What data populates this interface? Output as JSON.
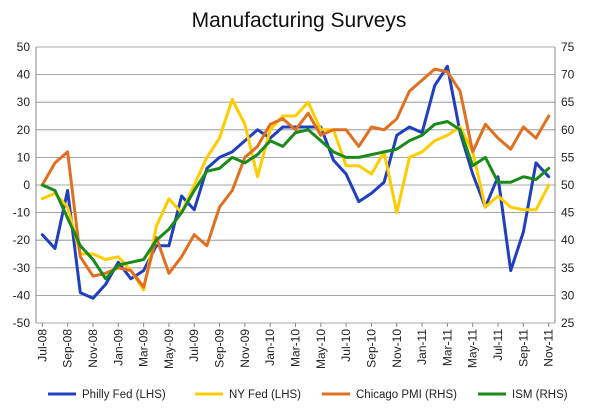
{
  "chart_data": {
    "type": "line",
    "title": "Manufacturing Surveys",
    "xlabel": "",
    "ylabel_left": "",
    "ylabel_right": "",
    "left_axis": {
      "ylim": [
        -50,
        50
      ],
      "ticks": [
        -50,
        -40,
        -30,
        -20,
        -10,
        0,
        10,
        20,
        30,
        40,
        50
      ]
    },
    "right_axis": {
      "ylim": [
        25,
        75
      ],
      "ticks": [
        25,
        30,
        35,
        40,
        45,
        50,
        55,
        60,
        65,
        70,
        75
      ]
    },
    "grid": true,
    "legend_position": "bottom",
    "categories": [
      "Jul-08",
      "Aug-08",
      "Sep-08",
      "Oct-08",
      "Nov-08",
      "Dec-08",
      "Jan-09",
      "Feb-09",
      "Mar-09",
      "Apr-09",
      "May-09",
      "Jun-09",
      "Jul-09",
      "Aug-09",
      "Sep-09",
      "Oct-09",
      "Nov-09",
      "Dec-09",
      "Jan-10",
      "Feb-10",
      "Mar-10",
      "Apr-10",
      "May-10",
      "Jun-10",
      "Jul-10",
      "Aug-10",
      "Sep-10",
      "Oct-10",
      "Nov-10",
      "Dec-10",
      "Jan-11",
      "Feb-11",
      "Mar-11",
      "Apr-11",
      "May-11",
      "Jun-11",
      "Jul-11",
      "Aug-11",
      "Sep-11",
      "Oct-11",
      "Nov-11"
    ],
    "tick_labels": [
      "Jul-08",
      "Sep-08",
      "Nov-08",
      "Jan-09",
      "Mar-09",
      "May-09",
      "Jul-09",
      "Sep-09",
      "Nov-09",
      "Jan-10",
      "Mar-10",
      "May-10",
      "Jul-10",
      "Sep-10",
      "Nov-10",
      "Jan-11",
      "Mar-11",
      "May-11",
      "Jul-11",
      "Sep-11",
      "Nov-11"
    ],
    "series": [
      {
        "name": "Philly Fed (LHS)",
        "axis": "left",
        "color": "#1f3fbf",
        "values": [
          -18,
          -23,
          -2,
          -39,
          -41,
          -36,
          -28,
          -34,
          -31,
          -22,
          -22,
          -4,
          -9,
          6,
          10,
          12,
          16,
          20,
          17,
          21,
          21,
          21,
          21,
          9,
          4,
          -6,
          -3,
          1,
          18,
          21,
          19,
          36,
          43,
          19,
          4,
          -8,
          3,
          -31,
          -17,
          8,
          3
        ]
      },
      {
        "name": "NY Fed (LHS)",
        "axis": "left",
        "color": "#ffcc00",
        "values": [
          -5,
          -3,
          -8,
          -25,
          -25,
          -27,
          -26,
          -31,
          -38,
          -15,
          -5,
          -10,
          0,
          10,
          17,
          31,
          22,
          3,
          20,
          25,
          25,
          30,
          20,
          20,
          7,
          7,
          4,
          12,
          -10,
          10,
          12,
          16,
          18,
          21,
          12,
          -8,
          -4,
          -8,
          -9,
          -9,
          0
        ]
      },
      {
        "name": "Chicago PMI  (RHS)",
        "axis": "right",
        "color": "#e07020",
        "values": [
          50,
          54,
          56,
          37,
          33.5,
          34,
          35,
          34.5,
          31.5,
          40.5,
          34,
          37,
          41,
          39,
          46,
          49,
          55,
          57,
          61,
          62,
          60,
          63,
          59,
          60,
          60,
          57,
          60.5,
          60,
          62,
          67,
          69,
          71,
          70.5,
          67,
          56,
          61,
          58.5,
          56.5,
          60.5,
          58.5,
          62.5
        ]
      },
      {
        "name": "ISM (RHS)",
        "axis": "right",
        "color": "#1a8a1a",
        "values": [
          50,
          49,
          44,
          39,
          36.5,
          33,
          35.5,
          36,
          36.5,
          40,
          42,
          45,
          49,
          52.5,
          53,
          55,
          54,
          55.5,
          58,
          57,
          59.5,
          60,
          58,
          56,
          55,
          55,
          55.5,
          56,
          56.5,
          58,
          59,
          61,
          61.5,
          60,
          53.5,
          55,
          50.5,
          50.5,
          51.5,
          51,
          53
        ]
      }
    ]
  }
}
